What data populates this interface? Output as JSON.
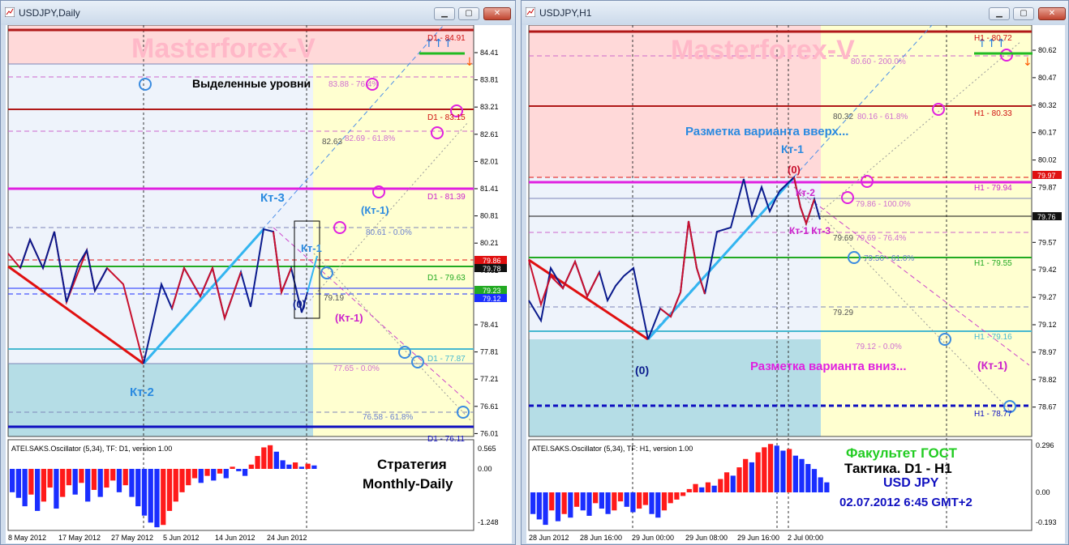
{
  "left": {
    "title": "USDJPY,Daily",
    "watermark": "Masterforex-V",
    "heading": "Выделенные уровни",
    "price_axis": [
      "84.41",
      "83.81",
      "83.21",
      "82.61",
      "82.01",
      "81.41",
      "80.81",
      "80.21",
      "79.61",
      "79.01",
      "78.41",
      "77.81",
      "77.21",
      "76.61",
      "76.01"
    ],
    "level_labels": {
      "d1_8491": "D1 - 84.91",
      "d1_8315": "D1 - 83.15",
      "d1_8139": "D1 - 81.39",
      "d1_7963": "D1 - 79.63",
      "d1_7787": "D1 - 77.87",
      "d1_7611": "D1 - 76.11"
    },
    "fib_labels": {
      "f1": "83.88 - 76.4%",
      "f2": "82.63",
      "f3": "82.69 - 61.8%",
      "f4": "80.61 - 0.0%",
      "f5": "79.19",
      "f6": "77.65 - 0.0%",
      "f7": "76.58 - 61.8%"
    },
    "price_tags": {
      "red": "79.86",
      "dark": "79.78",
      "green": "79.23",
      "blue": "79.12"
    },
    "wave_labels": {
      "kt3": "Кт-3",
      "kt1": "Кт-1",
      "kt1p": "(Кт-1)",
      "kt1p2": "(Кт-1)",
      "kt2": "Кт-2",
      "zero": "(0)"
    },
    "oscillator": {
      "label": "ATEI.SAKS.Oscillator (5,34), TF: D1,  version 1.00",
      "max": "0.565",
      "zero": "0.00",
      "min": "-1.248",
      "values": [
        -0.5,
        -0.62,
        -0.8,
        -0.55,
        -0.9,
        -0.7,
        -0.4,
        -0.85,
        -0.6,
        -0.35,
        -0.55,
        -0.3,
        -0.7,
        -0.45,
        -0.6,
        -0.4,
        -0.25,
        -0.5,
        -0.35,
        -0.6,
        -0.8,
        -1.0,
        -1.15,
        -1.25,
        -1.2,
        -0.9,
        -0.7,
        -0.5,
        -0.35,
        -0.2,
        -0.3,
        -0.15,
        -0.25,
        -0.1,
        -0.2,
        0.05,
        -0.05,
        -0.15,
        0.1,
        0.3,
        0.5,
        0.55,
        0.4,
        0.2,
        0.1,
        0.15,
        0.05,
        0.12,
        0.08
      ]
    },
    "strategy": [
      "Стратегия",
      "Monthly-Daily"
    ],
    "time_axis": [
      "8 May 2012",
      "17 May 2012",
      "27 May 2012",
      "5 Jun 2012",
      "14 Jun 2012",
      "24 Jun 2012"
    ]
  },
  "right": {
    "title": "USDJPY,H1",
    "watermark": "Masterforex-V",
    "price_axis": [
      "80.62",
      "80.47",
      "80.32",
      "80.17",
      "80.02",
      "79.87",
      "79.72",
      "79.57",
      "79.42",
      "79.27",
      "79.12",
      "78.97",
      "78.82",
      "78.67"
    ],
    "level_labels": {
      "h1_8072": "H1 - 80.72",
      "h1_8033": "H1 - 80.33",
      "h1_7994": "H1 - 79.94",
      "h1_7955": "H1 - 79.55",
      "h1_7916": "H1 - 79.16",
      "h1_7877": "H1 - 78.77"
    },
    "fib_labels": {
      "f1": "80.60 - 200.0%",
      "f2": "80.32",
      "f3": "80.16 - 61.8%",
      "f4": "79.86 - 100.0%",
      "f5": "79.69",
      "f6": "79.69 - 76.4%",
      "f7": "79.50 - 61.0%",
      "f8": "79.29",
      "f9": "79.12 - 0.0%"
    },
    "price_tags": {
      "red": "79.97",
      "dark": "79.76"
    },
    "annotations": {
      "up": "Разметка варианта вверх...",
      "down": "Разметка варианта вниз...",
      "kt1": "Кт-1",
      "zero_top": "(0)",
      "kt2": "Кт-2",
      "kt3": "Кт-1 Кт-3",
      "zero_bottom": "(0)",
      "kt1p": "(Кт-1)"
    },
    "oscillator": {
      "label": "ATEI.SAKS.Oscillator (5,34), TF: H1,  version 1.00",
      "max": "0.296",
      "zero": "0.00",
      "min": "-0.193",
      "values": [
        -0.12,
        -0.15,
        -0.18,
        -0.1,
        -0.16,
        -0.12,
        -0.14,
        -0.08,
        -0.1,
        -0.13,
        -0.06,
        -0.09,
        -0.12,
        -0.1,
        -0.05,
        -0.08,
        -0.11,
        -0.09,
        -0.07,
        -0.12,
        -0.14,
        -0.1,
        -0.06,
        -0.04,
        -0.02,
        0.02,
        0.05,
        0.03,
        0.06,
        0.04,
        0.08,
        0.12,
        0.1,
        0.15,
        0.2,
        0.18,
        0.24,
        0.27,
        0.29,
        0.28,
        0.25,
        0.26,
        0.22,
        0.2,
        0.17,
        0.14,
        0.09,
        0.06
      ]
    },
    "faculty": [
      "Факультет ГОСТ",
      "Тактика. D1 - H1",
      "USD JPY",
      "02.07.2012 6:45 GMT+2"
    ],
    "time_axis": [
      "28 Jun 2012",
      "28 Jun 16:00",
      "29 Jun 00:00",
      "29 Jun 08:00",
      "29 Jun 16:00",
      "2 Jul 00:00"
    ]
  },
  "colors": {
    "up_bar": "#ff1a1a",
    "down_bar": "#1a2eff",
    "pink_zone": "#ffd9d9",
    "yellow_zone": "#ffffd0",
    "teal_zone": "#b5dde6",
    "light_zone": "#f0f4fb"
  }
}
